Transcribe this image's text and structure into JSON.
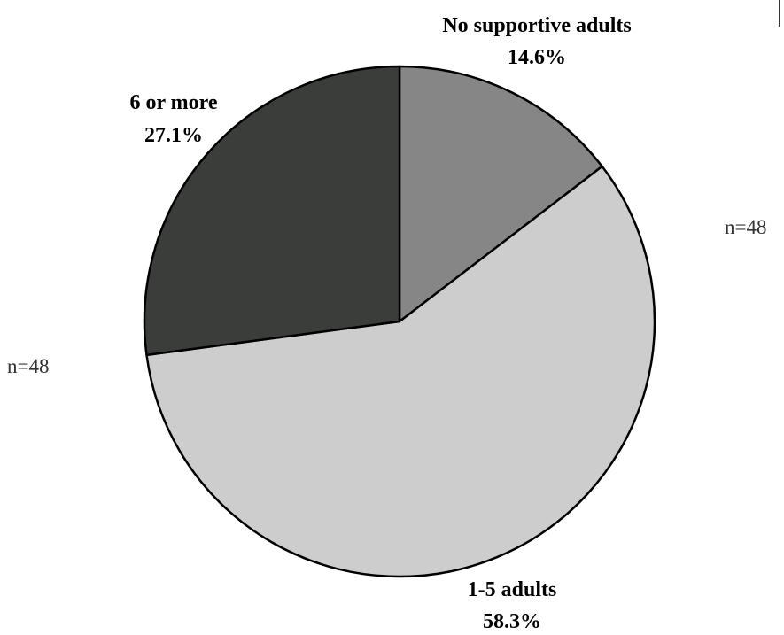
{
  "chart_data": {
    "type": "pie",
    "start_angle": "12 o'clock",
    "direction": "clockwise",
    "slices": [
      {
        "label": "No supportive adults",
        "percent_label": "14.6%",
        "value": 14.6,
        "color": "#858685"
      },
      {
        "label": "1-5 adults",
        "percent_label": "58.3%",
        "value": 58.3,
        "color": "#cccdcc"
      },
      {
        "label": "6 or more",
        "percent_label": "27.1%",
        "value": 27.1,
        "color": "#3b3d3b"
      }
    ],
    "annotations": [
      "n=48",
      "n=48"
    ]
  }
}
